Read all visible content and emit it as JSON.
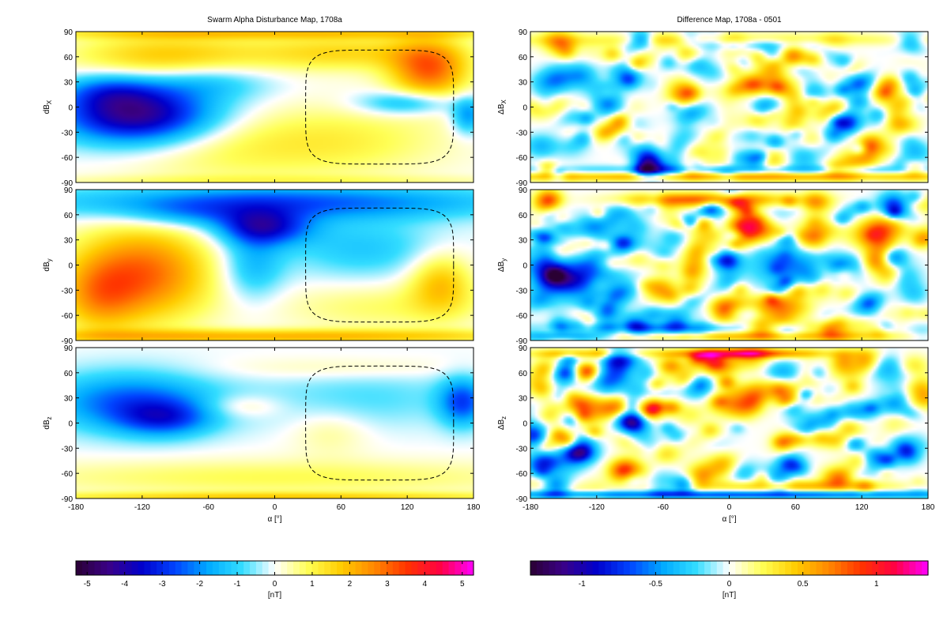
{
  "chart_data": [
    {
      "type": "heatmap",
      "title": "Swarm Alpha Disturbance Map, 1708a",
      "ylabel": "dB_X",
      "ylabel_main": "dB",
      "ylabel_sub": "X",
      "xlim": [
        -180,
        180
      ],
      "ylim": [
        -90,
        90
      ],
      "xticks": [
        -180,
        -120,
        -60,
        0,
        60,
        120,
        180
      ],
      "yticks": [
        -90,
        -60,
        -30,
        0,
        30,
        60,
        90
      ],
      "overlay": "dashed closed contour",
      "blobs": [
        {
          "x": -125,
          "y": -10,
          "sx": 50,
          "sy": 25,
          "v": -4.5
        },
        {
          "x": -150,
          "y": 20,
          "sx": 30,
          "sy": 15,
          "v": -1.5
        },
        {
          "x": -60,
          "y": 30,
          "sx": 40,
          "sy": 15,
          "v": -1.2
        },
        {
          "x": -100,
          "y": 60,
          "sx": 60,
          "sy": 20,
          "v": 1.8
        },
        {
          "x": 60,
          "y": 65,
          "sx": 60,
          "sy": 15,
          "v": 1.5
        },
        {
          "x": 140,
          "y": 45,
          "sx": 25,
          "sy": 25,
          "v": 3.0
        },
        {
          "x": 120,
          "y": 5,
          "sx": 30,
          "sy": 10,
          "v": -1.8
        },
        {
          "x": 175,
          "y": -10,
          "sx": 10,
          "sy": 15,
          "v": -2.0
        },
        {
          "x": 60,
          "y": -40,
          "sx": 70,
          "sy": 30,
          "v": 1.0
        },
        {
          "x": -60,
          "y": -50,
          "sx": 70,
          "sy": 30,
          "v": 0.8
        },
        {
          "x": 0,
          "y": 88,
          "sx": 180,
          "sy": 5,
          "v": 1.5
        },
        {
          "x": 0,
          "y": -88,
          "sx": 180,
          "sy": 5,
          "v": 0.6
        }
      ]
    },
    {
      "type": "heatmap",
      "ylabel": "dB_y",
      "ylabel_main": "dB",
      "ylabel_sub": "y",
      "xlim": [
        -180,
        180
      ],
      "ylim": [
        -90,
        90
      ],
      "xticks": [
        -180,
        -120,
        -60,
        0,
        60,
        120,
        180
      ],
      "yticks": [
        -90,
        -60,
        -30,
        0,
        30,
        60,
        90
      ],
      "overlay": "dashed closed contour",
      "blobs": [
        {
          "x": -120,
          "y": -10,
          "sx": 45,
          "sy": 40,
          "v": 3.0
        },
        {
          "x": -160,
          "y": -40,
          "sx": 25,
          "sy": 30,
          "v": 1.5
        },
        {
          "x": -10,
          "y": 45,
          "sx": 30,
          "sy": 15,
          "v": -3.2
        },
        {
          "x": 0,
          "y": 75,
          "sx": 150,
          "sy": 15,
          "v": -2.5
        },
        {
          "x": -80,
          "y": 60,
          "sx": 40,
          "sy": 12,
          "v": -1.0
        },
        {
          "x": -20,
          "y": 0,
          "sx": 20,
          "sy": 30,
          "v": -1.5
        },
        {
          "x": 80,
          "y": 20,
          "sx": 50,
          "sy": 25,
          "v": -1.2
        },
        {
          "x": 150,
          "y": -20,
          "sx": 20,
          "sy": 25,
          "v": 1.8
        },
        {
          "x": 100,
          "y": -50,
          "sx": 70,
          "sy": 20,
          "v": 0.8
        },
        {
          "x": 0,
          "y": -85,
          "sx": 180,
          "sy": 6,
          "v": 2.0
        }
      ]
    },
    {
      "type": "heatmap",
      "ylabel": "dB_z",
      "ylabel_main": "dB",
      "ylabel_sub": "z",
      "xlabel": "α [°]",
      "xlim": [
        -180,
        180
      ],
      "ylim": [
        -90,
        90
      ],
      "xticks": [
        -180,
        -120,
        -60,
        0,
        60,
        120,
        180
      ],
      "yticks": [
        -90,
        -60,
        -30,
        0,
        30,
        60,
        90
      ],
      "overlay": "dashed closed contour",
      "blobs": [
        {
          "x": -130,
          "y": 25,
          "sx": 55,
          "sy": 25,
          "v": -2.5
        },
        {
          "x": -100,
          "y": 5,
          "sx": 30,
          "sy": 15,
          "v": -2.0
        },
        {
          "x": 170,
          "y": 25,
          "sx": 15,
          "sy": 20,
          "v": -2.5
        },
        {
          "x": 80,
          "y": 30,
          "sx": 70,
          "sy": 25,
          "v": -0.8
        },
        {
          "x": 50,
          "y": -10,
          "sx": 25,
          "sy": 20,
          "v": 0.6
        },
        {
          "x": -30,
          "y": 20,
          "sx": 25,
          "sy": 10,
          "v": 0.8
        },
        {
          "x": 0,
          "y": -65,
          "sx": 180,
          "sy": 15,
          "v": 0.9
        },
        {
          "x": 0,
          "y": -88,
          "sx": 180,
          "sy": 4,
          "v": 1.5
        },
        {
          "x": 60,
          "y": 65,
          "sx": 80,
          "sy": 10,
          "v": 0.5
        }
      ]
    },
    {
      "type": "heatmap",
      "title": "Difference Map, 1708a - 0501",
      "ylabel": "ΔB_X",
      "ylabel_main": "ΔB",
      "ylabel_sub": "X",
      "xlim": [
        -180,
        180
      ],
      "ylim": [
        -90,
        90
      ],
      "xticks": [
        -180,
        -120,
        -60,
        0,
        60,
        120,
        180
      ],
      "yticks": [
        -90,
        -60,
        -30,
        0,
        30,
        60,
        90
      ],
      "noise_amplitude": 0.45,
      "seed": 11,
      "blobs": [
        {
          "x": 0,
          "y": -83,
          "sx": 180,
          "sy": 4,
          "v": 0.6
        },
        {
          "x": 0,
          "y": -75,
          "sx": 180,
          "sy": 4,
          "v": -0.3
        },
        {
          "x": 0,
          "y": 80,
          "sx": 180,
          "sy": 6,
          "v": 0.3
        },
        {
          "x": 30,
          "y": 75,
          "sx": 50,
          "sy": 5,
          "v": -0.3
        }
      ]
    },
    {
      "type": "heatmap",
      "ylabel": "ΔB_y",
      "ylabel_main": "ΔB",
      "ylabel_sub": "y",
      "xlim": [
        -180,
        180
      ],
      "ylim": [
        -90,
        90
      ],
      "xticks": [
        -180,
        -120,
        -60,
        0,
        60,
        120,
        180
      ],
      "yticks": [
        -90,
        -60,
        -30,
        0,
        30,
        60,
        90
      ],
      "noise_amplitude": 0.45,
      "seed": 23,
      "blobs": [
        {
          "x": -155,
          "y": -15,
          "sx": 20,
          "sy": 15,
          "v": -1.1
        },
        {
          "x": -120,
          "y": 0,
          "sx": 25,
          "sy": 30,
          "v": -0.4
        },
        {
          "x": -20,
          "y": 78,
          "sx": 50,
          "sy": 6,
          "v": 0.8
        },
        {
          "x": 10,
          "y": 35,
          "sx": 30,
          "sy": 12,
          "v": 0.7
        },
        {
          "x": 150,
          "y": 35,
          "sx": 30,
          "sy": 12,
          "v": 0.6
        },
        {
          "x": 60,
          "y": 0,
          "sx": 30,
          "sy": 20,
          "v": -0.5
        },
        {
          "x": -80,
          "y": -75,
          "sx": 60,
          "sy": 5,
          "v": -0.5
        },
        {
          "x": 20,
          "y": -85,
          "sx": 90,
          "sy": 4,
          "v": 0.5
        },
        {
          "x": -150,
          "y": -85,
          "sx": 30,
          "sy": 4,
          "v": -0.6
        },
        {
          "x": 30,
          "y": -50,
          "sx": 30,
          "sy": 10,
          "v": 0.6
        }
      ]
    },
    {
      "type": "heatmap",
      "ylabel": "ΔB_z",
      "ylabel_main": "ΔB",
      "ylabel_sub": "z",
      "xlabel": "α [°]",
      "xlim": [
        -180,
        180
      ],
      "ylim": [
        -90,
        90
      ],
      "xticks": [
        -180,
        -120,
        -60,
        0,
        60,
        120,
        180
      ],
      "yticks": [
        -90,
        -60,
        -30,
        0,
        30,
        60,
        90
      ],
      "noise_amplitude": 0.5,
      "seed": 37,
      "blobs": [
        {
          "x": 10,
          "y": 83,
          "sx": 50,
          "sy": 4,
          "v": 0.9
        },
        {
          "x": -140,
          "y": 83,
          "sx": 30,
          "sy": 4,
          "v": 0.5
        },
        {
          "x": 0,
          "y": -85,
          "sx": 180,
          "sy": 3,
          "v": -0.7
        },
        {
          "x": 60,
          "y": -75,
          "sx": 60,
          "sy": 5,
          "v": 0.5
        },
        {
          "x": -135,
          "y": -35,
          "sx": 10,
          "sy": 8,
          "v": -0.8
        },
        {
          "x": -140,
          "y": 25,
          "sx": 12,
          "sy": 8,
          "v": 0.6
        }
      ]
    }
  ],
  "colorbars": [
    {
      "vmin": -5.3,
      "vmax": 5.3,
      "ticks": [
        -5,
        -4,
        -3,
        -2,
        -1,
        0,
        1,
        2,
        3,
        4,
        5
      ],
      "tick_labels": [
        "-5",
        "-4",
        "-3",
        "-2",
        "-1",
        "0",
        "1",
        "2",
        "3",
        "4",
        "5"
      ],
      "label": "[nT]"
    },
    {
      "vmin": -1.35,
      "vmax": 1.35,
      "ticks": [
        -1,
        -0.5,
        0,
        0.5,
        1
      ],
      "tick_labels": [
        "-1",
        "-0.5",
        "0",
        "0.5",
        "1"
      ],
      "label": "[nT]"
    }
  ],
  "colormap": [
    "#2a0033",
    "#3a0088",
    "#0000cc",
    "#0044ff",
    "#00aaff",
    "#33ddff",
    "#ffffff",
    "#ffff55",
    "#ffcc00",
    "#ff8800",
    "#ff3300",
    "#ff0044",
    "#ff00ff"
  ]
}
